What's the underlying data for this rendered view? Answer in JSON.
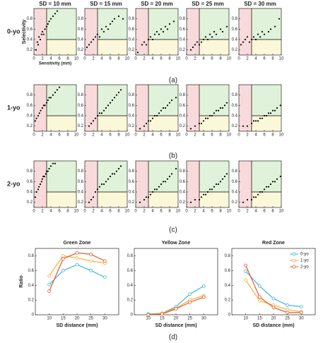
{
  "row_labels": [
    "0-yo",
    "1-yo",
    "2-yo"
  ],
  "captions": [
    "(a)",
    "(b)",
    "(c)",
    "(d)"
  ],
  "zones": {
    "x": 3,
    "y": 0.4,
    "left_color": "#f9dada",
    "upper_color": "#e0f3da",
    "lower_color": "#fbf8da"
  },
  "chart_data": [
    {
      "type": "scatter",
      "title": "SD = 10 mm",
      "ylabel": "Selectivity",
      "xlabel": "Sensitivity (mm)",
      "xlim": [
        0,
        10
      ],
      "ylim": [
        0.1,
        1
      ],
      "xticks": [
        0,
        2,
        4,
        6,
        8,
        10
      ],
      "yticks": [
        0.2,
        0.4,
        0.6,
        0.8
      ],
      "x": [
        0.5,
        0.8,
        1,
        1.2,
        1.5,
        1.8,
        2,
        2.3,
        2.6,
        3,
        3.3,
        3.6,
        4,
        4.5,
        5,
        5.5
      ],
      "y": [
        0.2,
        0.35,
        0.3,
        0.45,
        0.4,
        0.5,
        0.55,
        0.5,
        0.6,
        0.65,
        0.7,
        0.75,
        0.8,
        0.85,
        0.9,
        0.95
      ]
    },
    {
      "type": "scatter",
      "title": "SD = 15 mm",
      "xlim": [
        0,
        10
      ],
      "ylim": [
        0.1,
        1
      ],
      "xticks": [
        0,
        2,
        4,
        6,
        8,
        10
      ],
      "yticks": [
        0.2,
        0.4,
        0.6,
        0.8
      ],
      "x": [
        0.5,
        1,
        1.5,
        2,
        2.5,
        3,
        3.5,
        4,
        4.5,
        5,
        5.5,
        6,
        6.5,
        7,
        8,
        9
      ],
      "y": [
        0.25,
        0.3,
        0.35,
        0.4,
        0.45,
        0.5,
        0.45,
        0.6,
        0.55,
        0.65,
        0.6,
        0.7,
        0.75,
        0.8,
        0.85,
        0.8
      ]
    },
    {
      "type": "scatter",
      "title": "SD = 20 mm",
      "xlim": [
        0,
        10
      ],
      "ylim": [
        0.1,
        1
      ],
      "xticks": [
        0,
        2,
        4,
        6,
        8,
        10
      ],
      "yticks": [
        0.2,
        0.4,
        0.6,
        0.8
      ],
      "x": [
        0.5,
        1.5,
        2,
        2.5,
        3,
        3.5,
        4,
        4.5,
        5,
        5.5,
        6,
        6.5,
        7,
        7.5,
        8,
        9
      ],
      "y": [
        0.15,
        0.3,
        0.35,
        0.3,
        0.4,
        0.45,
        0.4,
        0.5,
        0.55,
        0.5,
        0.6,
        0.55,
        0.65,
        0.6,
        0.7,
        0.75
      ]
    },
    {
      "type": "scatter",
      "title": "SD = 25 mm",
      "xlim": [
        0,
        10
      ],
      "ylim": [
        0.1,
        1
      ],
      "xticks": [
        0,
        2,
        4,
        6,
        8,
        10
      ],
      "yticks": [
        0.2,
        0.4,
        0.6,
        0.8
      ],
      "x": [
        1,
        1.5,
        2,
        2.5,
        3,
        3.5,
        4,
        4.5,
        5,
        5.5,
        6,
        6.5,
        7,
        8,
        8.5,
        9.5
      ],
      "y": [
        0.2,
        0.25,
        0.3,
        0.35,
        0.3,
        0.35,
        0.4,
        0.45,
        0.4,
        0.5,
        0.45,
        0.55,
        0.5,
        0.6,
        0.55,
        0.65
      ]
    },
    {
      "type": "scatter",
      "title": "SD = 30 mm",
      "xlim": [
        0,
        10
      ],
      "ylim": [
        0.1,
        1
      ],
      "xticks": [
        0,
        2,
        4,
        6,
        8,
        10
      ],
      "yticks": [
        0.2,
        0.4,
        0.6,
        0.8
      ],
      "x": [
        0.5,
        1,
        1.5,
        2,
        2.5,
        3,
        3.5,
        4,
        4.5,
        5,
        5.5,
        6,
        7,
        7.5,
        8.5,
        9.5
      ],
      "y": [
        0.3,
        0.35,
        0.4,
        0.45,
        0.35,
        0.4,
        0.45,
        0.4,
        0.5,
        0.45,
        0.55,
        0.5,
        0.55,
        0.6,
        0.65,
        0.8
      ]
    },
    {
      "type": "scatter",
      "xlim": [
        0,
        10
      ],
      "ylim": [
        0.1,
        1
      ],
      "xticks": [
        0,
        2,
        4,
        6,
        8,
        10
      ],
      "yticks": [
        0.2,
        0.4,
        0.6,
        0.8
      ],
      "x": [
        0.3,
        0.6,
        1,
        1.3,
        1.6,
        2,
        2.3,
        2.6,
        3,
        3.3,
        3.6,
        4,
        4.5,
        5,
        5.5,
        6
      ],
      "y": [
        0.3,
        0.35,
        0.4,
        0.45,
        0.5,
        0.55,
        0.6,
        0.6,
        0.65,
        0.7,
        0.75,
        0.75,
        0.8,
        0.85,
        0.9,
        0.95
      ]
    },
    {
      "type": "scatter",
      "xlim": [
        0,
        10
      ],
      "ylim": [
        0.1,
        1
      ],
      "xticks": [
        0,
        2,
        4,
        6,
        8,
        10
      ],
      "yticks": [
        0.2,
        0.4,
        0.6,
        0.8
      ],
      "x": [
        1,
        1.5,
        2,
        2.5,
        3,
        3.5,
        4,
        4.5,
        5,
        5.5,
        6,
        6.5,
        7,
        7.5,
        8,
        8.5
      ],
      "y": [
        0.2,
        0.25,
        0.3,
        0.35,
        0.4,
        0.45,
        0.45,
        0.5,
        0.55,
        0.6,
        0.65,
        0.7,
        0.75,
        0.8,
        0.85,
        0.9
      ]
    },
    {
      "type": "scatter",
      "xlim": [
        0,
        10
      ],
      "ylim": [
        0.1,
        1
      ],
      "xticks": [
        0,
        2,
        4,
        6,
        8,
        10
      ],
      "yticks": [
        0.2,
        0.4,
        0.6,
        0.8
      ],
      "x": [
        1,
        2,
        2.5,
        3,
        3.5,
        4,
        4.5,
        5,
        5.5,
        6,
        6.5,
        7,
        7.5,
        8,
        8.5,
        9.5
      ],
      "y": [
        0.15,
        0.2,
        0.25,
        0.3,
        0.3,
        0.35,
        0.4,
        0.4,
        0.45,
        0.5,
        0.55,
        0.55,
        0.6,
        0.65,
        0.7,
        0.75
      ]
    },
    {
      "type": "scatter",
      "xlim": [
        0,
        10
      ],
      "ylim": [
        0.1,
        1
      ],
      "xticks": [
        0,
        2,
        4,
        6,
        8,
        10
      ],
      "yticks": [
        0.2,
        0.4,
        0.6,
        0.8
      ],
      "x": [
        1,
        2,
        3,
        3.5,
        4,
        4.5,
        5,
        5.5,
        6,
        6.5,
        7,
        7.5,
        8,
        8.5,
        9,
        9.5
      ],
      "y": [
        0.15,
        0.2,
        0.25,
        0.25,
        0.3,
        0.35,
        0.35,
        0.4,
        0.4,
        0.45,
        0.5,
        0.5,
        0.55,
        0.55,
        0.6,
        0.65
      ]
    },
    {
      "type": "scatter",
      "xlim": [
        0,
        10
      ],
      "ylim": [
        0.1,
        1
      ],
      "xticks": [
        0,
        2,
        4,
        6,
        8,
        10
      ],
      "yticks": [
        0.2,
        0.4,
        0.6,
        0.8
      ],
      "x": [
        1,
        2,
        3,
        3.5,
        4,
        4.5,
        5,
        5.5,
        6,
        6.5,
        7,
        7.5,
        8,
        8.5,
        9,
        9.8
      ],
      "y": [
        0.2,
        0.2,
        0.25,
        0.3,
        0.3,
        0.3,
        0.35,
        0.35,
        0.4,
        0.4,
        0.45,
        0.45,
        0.5,
        0.5,
        0.55,
        0.6
      ]
    },
    {
      "type": "scatter",
      "xlim": [
        0,
        10
      ],
      "ylim": [
        0.1,
        1
      ],
      "xticks": [
        0,
        2,
        4,
        6,
        8,
        10
      ],
      "yticks": [
        0.2,
        0.4,
        0.6,
        0.8
      ],
      "x": [
        0.3,
        0.6,
        1,
        1.2,
        1.5,
        1.8,
        2,
        2.2,
        2.5,
        2.8,
        3,
        3.3,
        3.6,
        4,
        4.5,
        5
      ],
      "y": [
        0.3,
        0.4,
        0.45,
        0.5,
        0.55,
        0.6,
        0.65,
        0.7,
        0.7,
        0.75,
        0.8,
        0.8,
        0.85,
        0.9,
        0.95,
        0.95
      ]
    },
    {
      "type": "scatter",
      "xlim": [
        0,
        10
      ],
      "ylim": [
        0.1,
        1
      ],
      "xticks": [
        0,
        2,
        4,
        6,
        8,
        10
      ],
      "yticks": [
        0.2,
        0.4,
        0.6,
        0.8
      ],
      "x": [
        1,
        1.5,
        2,
        2.5,
        3,
        3.5,
        4,
        4.5,
        5,
        5.5,
        6,
        6.5,
        7,
        7.5,
        8,
        8.5
      ],
      "y": [
        0.2,
        0.25,
        0.3,
        0.4,
        0.45,
        0.5,
        0.55,
        0.55,
        0.6,
        0.65,
        0.7,
        0.75,
        0.75,
        0.8,
        0.85,
        0.9
      ]
    },
    {
      "type": "scatter",
      "xlim": [
        0,
        10
      ],
      "ylim": [
        0.1,
        1
      ],
      "xticks": [
        0,
        2,
        4,
        6,
        8,
        10
      ],
      "yticks": [
        0.2,
        0.4,
        0.6,
        0.8
      ],
      "x": [
        1,
        2,
        2.5,
        3,
        3.5,
        4,
        4.5,
        5,
        5.5,
        6,
        6.5,
        7,
        7.5,
        8,
        8.5,
        9.5
      ],
      "y": [
        0.2,
        0.25,
        0.3,
        0.3,
        0.35,
        0.4,
        0.45,
        0.45,
        0.5,
        0.55,
        0.6,
        0.6,
        0.65,
        0.7,
        0.75,
        0.85
      ]
    },
    {
      "type": "scatter",
      "xlim": [
        0,
        10
      ],
      "ylim": [
        0.1,
        1
      ],
      "xticks": [
        0,
        2,
        4,
        6,
        8,
        10
      ],
      "yticks": [
        0.2,
        0.4,
        0.6,
        0.8
      ],
      "x": [
        1,
        2,
        3,
        3.5,
        4,
        4.5,
        5,
        5.5,
        6,
        6.5,
        7,
        7.5,
        8,
        8.5,
        9,
        9.5
      ],
      "y": [
        0.2,
        0.25,
        0.25,
        0.3,
        0.35,
        0.35,
        0.4,
        0.45,
        0.45,
        0.5,
        0.55,
        0.55,
        0.6,
        0.65,
        0.7,
        0.75
      ]
    },
    {
      "type": "scatter",
      "xlim": [
        0,
        10
      ],
      "ylim": [
        0.1,
        1
      ],
      "xticks": [
        0,
        2,
        4,
        6,
        8,
        10
      ],
      "yticks": [
        0.2,
        0.4,
        0.6,
        0.8
      ],
      "x": [
        1,
        2,
        3,
        3.5,
        4,
        4.5,
        5,
        5.5,
        6,
        6.5,
        7,
        7.5,
        8,
        8.5,
        9,
        9.8
      ],
      "y": [
        0.2,
        0.25,
        0.25,
        0.3,
        0.3,
        0.35,
        0.4,
        0.4,
        0.45,
        0.5,
        0.5,
        0.55,
        0.6,
        0.6,
        0.65,
        0.7
      ]
    },
    {
      "type": "line",
      "title": "Green Zone",
      "ylabel": "Ratio",
      "xlabel": "SD distance (mm)",
      "x": [
        10,
        15,
        20,
        25,
        30
      ],
      "xlim": [
        5,
        35
      ],
      "xticks": [
        10,
        15,
        20,
        25,
        30
      ],
      "ylim": [
        0,
        0.9
      ],
      "yticks": [
        0,
        0.2,
        0.4,
        0.6,
        0.8
      ],
      "series": [
        {
          "color": "#3cb4dc",
          "values": [
            0.41,
            0.6,
            0.68,
            0.6,
            0.51
          ]
        },
        {
          "color": "#f2b134",
          "values": [
            0.53,
            0.8,
            0.77,
            0.73,
            0.7
          ]
        },
        {
          "color": "#e4582a",
          "values": [
            0.32,
            0.76,
            0.84,
            0.82,
            0.73
          ]
        }
      ]
    },
    {
      "type": "line",
      "title": "Yellow Zone",
      "xlabel": "SD distance (mm)",
      "x": [
        10,
        15,
        20,
        25,
        30
      ],
      "xlim": [
        5,
        35
      ],
      "xticks": [
        10,
        15,
        20,
        25,
        30
      ],
      "ylim": [
        0,
        0.9
      ],
      "yticks": [
        0,
        0.2,
        0.4,
        0.6,
        0.8
      ],
      "series": [
        {
          "color": "#3cb4dc",
          "values": [
            0.01,
            0.02,
            0.11,
            0.28,
            0.39
          ]
        },
        {
          "color": "#f2b134",
          "values": [
            0,
            0.02,
            0.09,
            0.2,
            0.26
          ]
        },
        {
          "color": "#e4582a",
          "values": [
            0,
            0.01,
            0.08,
            0.17,
            0.24
          ]
        }
      ]
    },
    {
      "type": "line",
      "title": "Red Zone",
      "xlabel": "SD distance (mm)",
      "legend": "upper right",
      "x": [
        10,
        15,
        20,
        25,
        30
      ],
      "xlim": [
        5,
        35
      ],
      "xticks": [
        10,
        15,
        20,
        25,
        30
      ],
      "ylim": [
        0,
        0.9
      ],
      "yticks": [
        0,
        0.2,
        0.4,
        0.6,
        0.8
      ],
      "series": [
        {
          "name": "0-yo",
          "color": "#3cb4dc",
          "values": [
            0.59,
            0.39,
            0.22,
            0.13,
            0.11
          ]
        },
        {
          "name": "1-yo",
          "color": "#f2b134",
          "values": [
            0.47,
            0.19,
            0.13,
            0.07,
            0.04
          ]
        },
        {
          "name": "2-yo",
          "color": "#e4582a",
          "values": [
            0.67,
            0.24,
            0.1,
            0.03,
            0.03
          ]
        }
      ]
    }
  ]
}
